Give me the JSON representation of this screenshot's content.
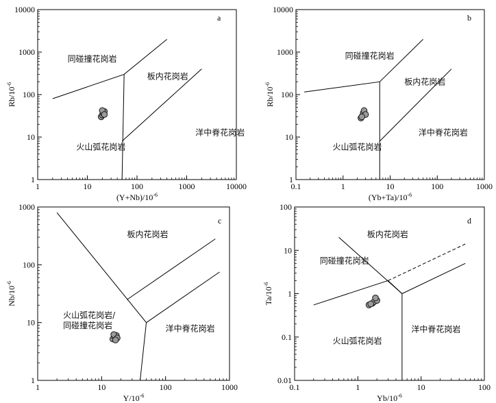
{
  "colors": {
    "point_fill": "#9a9a9a",
    "point_stroke": "#1a1a1a",
    "line": "#000000"
  },
  "chart_data": [
    {
      "type": "scatter",
      "panel": "a",
      "scale": "log-log",
      "xlabel": "(Y+Nb)/10",
      "xlabel_exp": "-6",
      "ylabel": "Rb/10",
      "ylabel_exp": "-6",
      "xlim": [
        1,
        10000
      ],
      "ylim": [
        1,
        10000
      ],
      "x_ticks": [
        "1",
        "10",
        "100",
        "1000",
        "10000"
      ],
      "y_ticks": [
        "1",
        "10",
        "100",
        "1000",
        "10000"
      ],
      "fields": [
        {
          "label": "同碰撞花岗岩",
          "x": 4,
          "y": 600
        },
        {
          "label": "板内花岗岩",
          "x": 160,
          "y": 230
        },
        {
          "label": "火山弧花岗岩",
          "x": 6,
          "y": 5
        },
        {
          "label": "洋中脊花岗岩",
          "x": 1500,
          "y": 11
        }
      ],
      "boundaries": [
        [
          [
            2,
            80
          ],
          [
            55,
            300
          ],
          [
            400,
            2000
          ]
        ],
        [
          [
            55,
            300
          ],
          [
            50,
            1
          ]
        ],
        [
          [
            50,
            8
          ],
          [
            2000,
            400
          ]
        ]
      ],
      "dashed_boundaries": [],
      "points": [
        [
          19,
          30
        ],
        [
          20,
          33
        ],
        [
          21,
          36
        ],
        [
          22,
          40
        ],
        [
          20,
          42
        ],
        [
          22,
          34
        ]
      ]
    },
    {
      "type": "scatter",
      "panel": "b",
      "scale": "log-log",
      "xlabel": "(Yb+Ta)/10",
      "xlabel_exp": "-6",
      "ylabel": "Rb/10",
      "ylabel_exp": "-6",
      "xlim": [
        0.1,
        1000
      ],
      "ylim": [
        1,
        10000
      ],
      "x_ticks": [
        "0.1",
        "1",
        "10",
        "100",
        "1000"
      ],
      "y_ticks": [
        "1",
        "10",
        "100",
        "1000",
        "10000"
      ],
      "fields": [
        {
          "label": "同碰撞花岗岩",
          "x": 1.1,
          "y": 700
        },
        {
          "label": "板内花岗岩",
          "x": 20,
          "y": 170
        },
        {
          "label": "火山弧花岗岩",
          "x": 0.6,
          "y": 5
        },
        {
          "label": "洋中脊花岗岩",
          "x": 40,
          "y": 11
        }
      ],
      "boundaries": [
        [
          [
            0.15,
            115
          ],
          [
            6,
            200
          ],
          [
            50,
            2000
          ]
        ],
        [
          [
            6,
            200
          ],
          [
            6,
            1
          ]
        ],
        [
          [
            6,
            8
          ],
          [
            200,
            400
          ]
        ]
      ],
      "dashed_boundaries": [],
      "points": [
        [
          2.4,
          28
        ],
        [
          2.6,
          32
        ],
        [
          2.7,
          37
        ],
        [
          2.8,
          42
        ],
        [
          3.0,
          34
        ],
        [
          2.5,
          30
        ]
      ]
    },
    {
      "type": "scatter",
      "panel": "c",
      "scale": "log-log",
      "xlabel": "Y/10",
      "xlabel_exp": "-6",
      "ylabel": "Nb/10",
      "ylabel_exp": "-6",
      "xlim": [
        1,
        1000
      ],
      "ylim": [
        1,
        1000
      ],
      "x_ticks": [
        "1",
        "10",
        "100",
        "1000"
      ],
      "y_ticks": [
        "1",
        "10",
        "100",
        "1000"
      ],
      "fields": [
        {
          "label": "板内花岗岩",
          "x": 25,
          "y": 300
        },
        {
          "label": "火山弧花岗岩/",
          "x": 2.5,
          "y": 12
        },
        {
          "label": "同碰撞花岗岩",
          "x": 2.5,
          "y": 8
        },
        {
          "label": "洋中脊花岗岩",
          "x": 100,
          "y": 7
        }
      ],
      "boundaries": [
        [
          [
            2,
            800
          ],
          [
            50,
            10
          ],
          [
            40,
            1
          ]
        ],
        [
          [
            25,
            25
          ],
          [
            600,
            280
          ]
        ],
        [
          [
            50,
            10
          ],
          [
            700,
            75
          ]
        ]
      ],
      "dashed_boundaries": [],
      "points": [
        [
          15,
          5.2
        ],
        [
          16,
          5.6
        ],
        [
          17,
          6.0
        ],
        [
          15.5,
          6.2
        ],
        [
          17.5,
          5.4
        ],
        [
          16.5,
          5.0
        ]
      ]
    },
    {
      "type": "scatter",
      "panel": "d",
      "scale": "log-log",
      "xlabel": "Yb/10",
      "xlabel_exp": "-6",
      "ylabel": "Ta/10",
      "ylabel_exp": "-6",
      "xlim": [
        0.1,
        100
      ],
      "ylim": [
        0.01,
        100
      ],
      "x_ticks": [
        "0.1",
        "1",
        "10",
        "100"
      ],
      "y_ticks": [
        "0.01",
        "0.1",
        "1",
        "10",
        "100"
      ],
      "fields": [
        {
          "label": "板内花岗岩",
          "x": 1.4,
          "y": 20
        },
        {
          "label": "同碰撞花岗岩",
          "x": 0.25,
          "y": 5
        },
        {
          "label": "火山弧花岗岩",
          "x": 0.4,
          "y": 0.07
        },
        {
          "label": "洋中脊花岗岩",
          "x": 7,
          "y": 0.13
        }
      ],
      "boundaries": [
        [
          [
            0.2,
            0.55
          ],
          [
            3,
            2
          ],
          [
            5,
            1
          ]
        ],
        [
          [
            0.5,
            20
          ],
          [
            5,
            1
          ],
          [
            5,
            0.01
          ]
        ],
        [
          [
            5,
            1
          ],
          [
            50,
            5
          ]
        ]
      ],
      "dashed_boundaries": [
        [
          [
            3,
            2
          ],
          [
            50,
            14
          ]
        ]
      ],
      "points": [
        [
          1.5,
          0.55
        ],
        [
          1.7,
          0.6
        ],
        [
          1.8,
          0.65
        ],
        [
          2.0,
          0.7
        ],
        [
          1.9,
          0.8
        ],
        [
          1.6,
          0.58
        ]
      ]
    }
  ]
}
